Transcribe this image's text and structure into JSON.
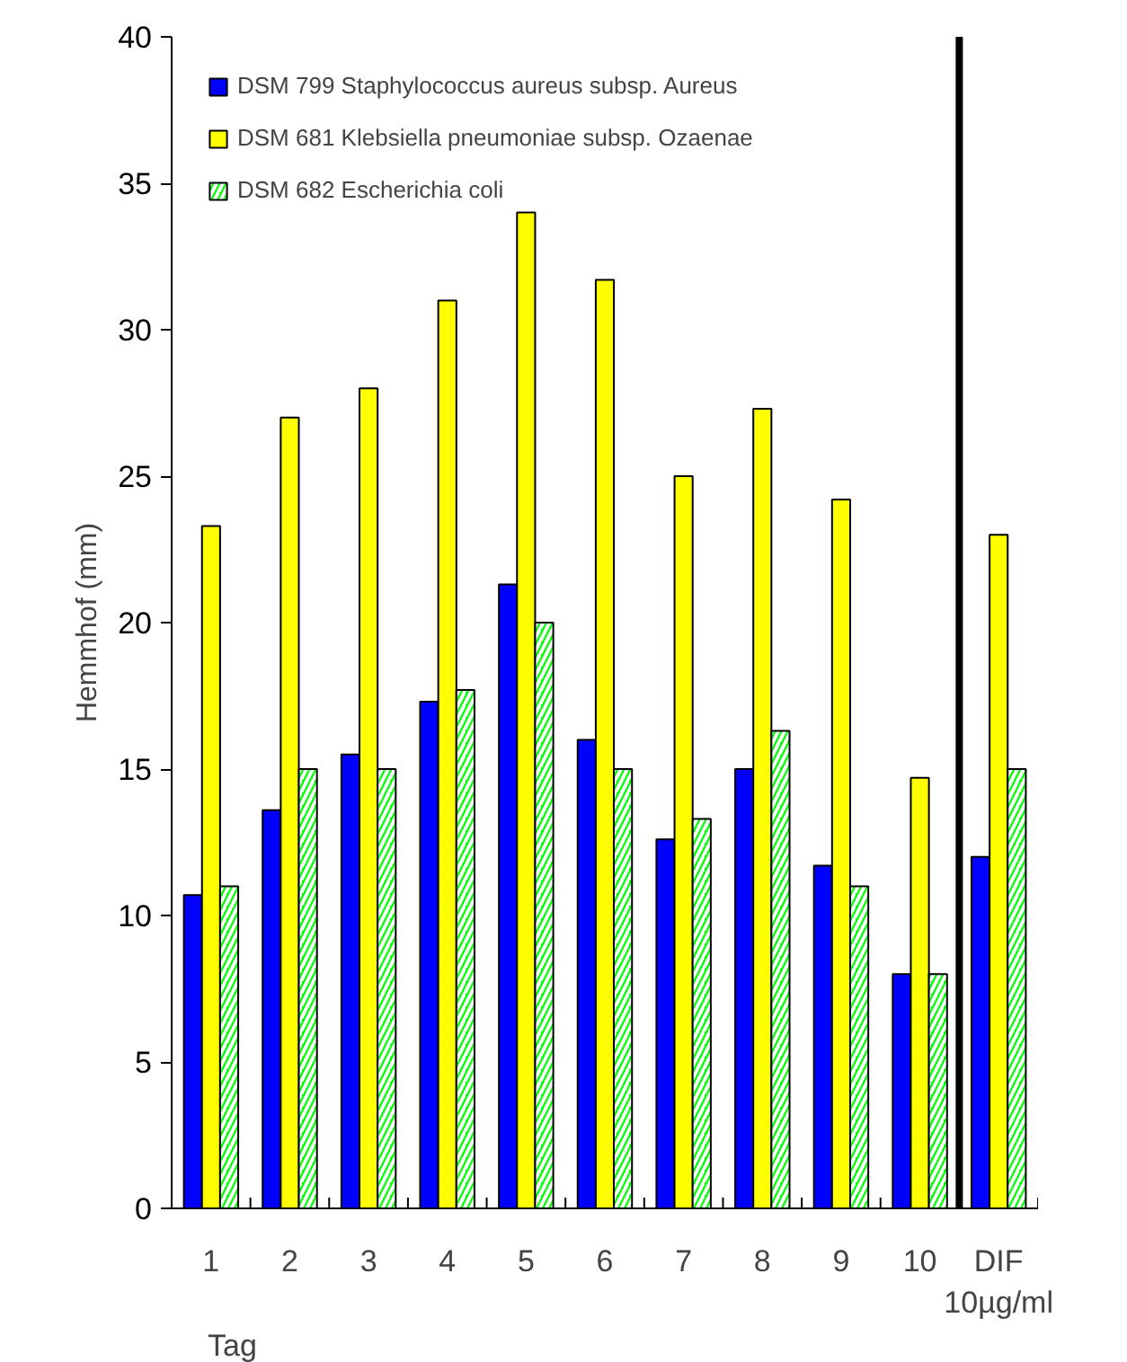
{
  "chart_data": {
    "type": "bar",
    "ylabel": "Hemmhof (mm)",
    "xlabel": "Tag",
    "categories": [
      "1",
      "2",
      "3",
      "4",
      "5",
      "6",
      "7",
      "8",
      "9",
      "10",
      "DIF\n10µg/ml"
    ],
    "series": [
      {
        "name": "DSM 799 Staphylococcus aureus subsp. Aureus",
        "color": "#0000ff",
        "values": [
          10.7,
          13.6,
          15.5,
          17.3,
          21.3,
          16,
          12.6,
          15,
          11.7,
          8,
          12
        ]
      },
      {
        "name": "DSM 681 Klebsiella pneumoniae subsp. Ozaenae",
        "color": "#ffff00",
        "values": [
          23.3,
          27,
          28,
          31,
          34,
          31.7,
          25,
          27.3,
          24.2,
          14.7,
          23
        ]
      },
      {
        "name": "DSM 682 Escherichia coli",
        "color": "#00ff00",
        "values": [
          11,
          15,
          15,
          17.7,
          20,
          15,
          13.3,
          16.3,
          11,
          8,
          15
        ]
      }
    ],
    "ylim": [
      0,
      40
    ],
    "yticks": [
      0,
      5,
      10,
      15,
      20,
      25,
      30,
      35,
      40
    ],
    "grid": false,
    "legend": "top left"
  }
}
